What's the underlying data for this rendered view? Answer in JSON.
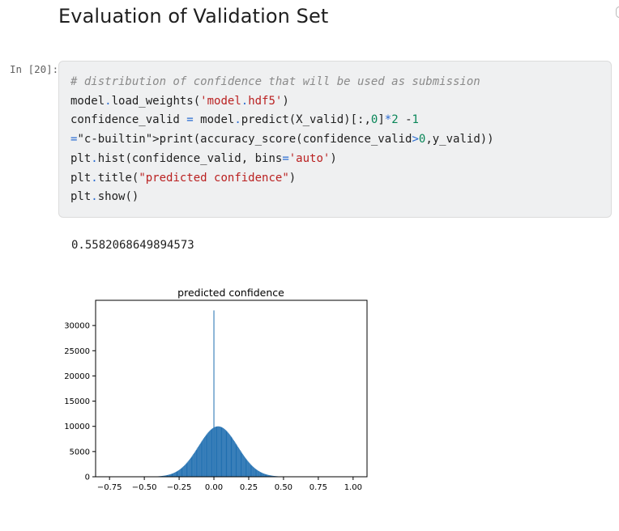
{
  "heading": "Evaluation of Validation Set",
  "cell": {
    "prompt": "In [20]:",
    "code_lines": [
      "# distribution of confidence that will be used as submission",
      "model.load_weights('model.hdf5')",
      "confidence_valid = model.predict(X_valid)[:,0]*2 -1",
      "print(accuracy_score(confidence_valid>0,y_valid))",
      "plt.hist(confidence_valid, bins='auto')",
      "plt.title(\"predicted confidence\")",
      "plt.show()"
    ]
  },
  "output": {
    "text": "0.5582068649894573"
  },
  "chart_data": {
    "type": "bar",
    "title": "predicted confidence",
    "xlabel": "",
    "ylabel": "",
    "xlim": [
      -0.85,
      1.1
    ],
    "ylim": [
      0,
      35000
    ],
    "xticks": [
      "−0.75",
      "−0.50",
      "−0.25",
      "0.00",
      "0.25",
      "0.50",
      "0.75",
      "1.00"
    ],
    "xtick_values": [
      -0.75,
      -0.5,
      -0.25,
      0.0,
      0.25,
      0.5,
      0.75,
      1.0
    ],
    "yticks": [
      "0",
      "5000",
      "10000",
      "15000",
      "20000",
      "25000",
      "30000"
    ],
    "ytick_values": [
      0,
      5000,
      10000,
      15000,
      20000,
      25000,
      30000
    ],
    "bar_color": "#1f6eb0",
    "distribution": {
      "center": 0.03,
      "sd": 0.14,
      "peak": 10000,
      "min_x": -0.55,
      "max_x": 0.55
    },
    "spike": {
      "x": 0.0,
      "value": 33000
    }
  }
}
